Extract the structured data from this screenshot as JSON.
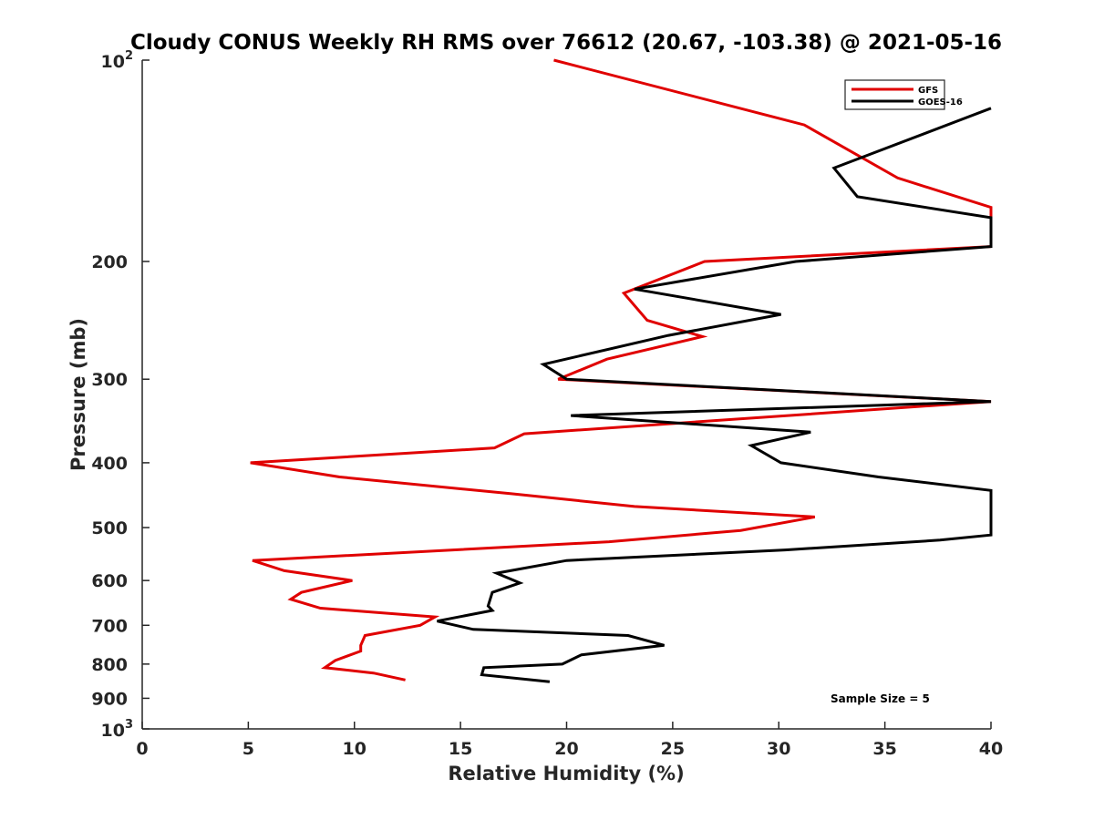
{
  "chart_data": {
    "type": "line",
    "title": "Cloudy CONUS Weekly RH RMS over 76612 (20.67, -103.38) @ 2021-05-16",
    "xlabel": "Relative Humidity (%)",
    "ylabel": "Pressure (mb)",
    "xlim": [
      0,
      40
    ],
    "ylim": [
      100,
      1000
    ],
    "yscale": "log",
    "yreversed": true,
    "xticks": [
      0,
      5,
      10,
      15,
      20,
      25,
      30,
      35,
      40
    ],
    "yticks": [
      {
        "value": 100,
        "label": "10",
        "sup": "2"
      },
      {
        "value": 200,
        "label": "200",
        "sup": ""
      },
      {
        "value": 300,
        "label": "300",
        "sup": ""
      },
      {
        "value": 400,
        "label": "400",
        "sup": ""
      },
      {
        "value": 500,
        "label": "500",
        "sup": ""
      },
      {
        "value": 600,
        "label": "600",
        "sup": ""
      },
      {
        "value": 700,
        "label": "700",
        "sup": ""
      },
      {
        "value": 800,
        "label": "800",
        "sup": ""
      },
      {
        "value": 900,
        "label": "900",
        "sup": ""
      },
      {
        "value": 1000,
        "label": "10",
        "sup": "3"
      }
    ],
    "legend_position": "top-right",
    "annotation": "Sample Size = 5",
    "series": [
      {
        "name": "GFS",
        "color": "#e00000",
        "points": [
          [
            19.4,
            100
          ],
          [
            31.2,
            125
          ],
          [
            35.6,
            150
          ],
          [
            40.0,
            166
          ],
          [
            40.0,
            190
          ],
          [
            26.5,
            200
          ],
          [
            22.7,
            223
          ],
          [
            23.8,
            245
          ],
          [
            26.4,
            259
          ],
          [
            21.9,
            280
          ],
          [
            19.6,
            300
          ],
          [
            40.0,
            324
          ],
          [
            18.0,
            362
          ],
          [
            16.6,
            380
          ],
          [
            5.1,
            400
          ],
          [
            9.3,
            420
          ],
          [
            17.4,
            445
          ],
          [
            23.2,
            465
          ],
          [
            31.7,
            482
          ],
          [
            28.2,
            505
          ],
          [
            22.0,
            525
          ],
          [
            5.2,
            560
          ],
          [
            6.7,
            580
          ],
          [
            9.9,
            600
          ],
          [
            7.5,
            625
          ],
          [
            7.0,
            640
          ],
          [
            8.4,
            660
          ],
          [
            13.8,
            680
          ],
          [
            13.1,
            700
          ],
          [
            10.5,
            725
          ],
          [
            10.3,
            750
          ],
          [
            10.3,
            765
          ],
          [
            9.1,
            790
          ],
          [
            8.6,
            810
          ],
          [
            10.9,
            825
          ],
          [
            12.4,
            845
          ]
        ]
      },
      {
        "name": "GOES-16",
        "color": "#000000",
        "points": [
          [
            40.0,
            118
          ],
          [
            32.6,
            145
          ],
          [
            33.7,
            160
          ],
          [
            40.0,
            172
          ],
          [
            40.0,
            190
          ],
          [
            30.8,
            200
          ],
          [
            23.2,
            220
          ],
          [
            30.1,
            240
          ],
          [
            24.8,
            258
          ],
          [
            18.9,
            285
          ],
          [
            20.0,
            300
          ],
          [
            40.0,
            324
          ],
          [
            20.2,
            340
          ],
          [
            31.5,
            360
          ],
          [
            28.7,
            377
          ],
          [
            30.1,
            400
          ],
          [
            34.7,
            420
          ],
          [
            40.0,
            440
          ],
          [
            40.0,
            513
          ],
          [
            37.6,
            522
          ],
          [
            30.3,
            540
          ],
          [
            20.0,
            560
          ],
          [
            16.7,
            585
          ],
          [
            17.8,
            605
          ],
          [
            16.5,
            625
          ],
          [
            16.3,
            655
          ],
          [
            16.5,
            665
          ],
          [
            13.9,
            690
          ],
          [
            15.6,
            710
          ],
          [
            22.9,
            725
          ],
          [
            24.6,
            750
          ],
          [
            20.7,
            775
          ],
          [
            19.8,
            800
          ],
          [
            16.1,
            810
          ],
          [
            16.0,
            830
          ],
          [
            19.2,
            850
          ]
        ]
      }
    ]
  }
}
